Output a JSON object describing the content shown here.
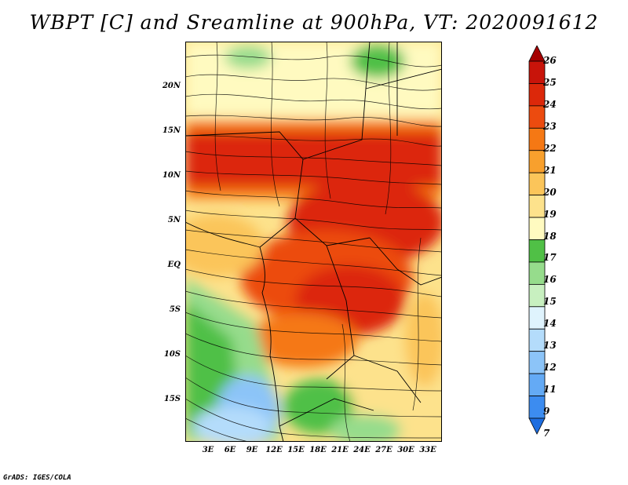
{
  "title": "WBPT [C] and Sreamline at 900hPa, VT: 2020091612",
  "footer": "GrADS: IGES/COLA",
  "map": {
    "lat_labels": [
      "20N",
      "15N",
      "10N",
      "5N",
      "EQ",
      "5S",
      "10S",
      "15S"
    ],
    "lon_labels": [
      "3E",
      "6E",
      "9E",
      "12E",
      "15E",
      "18E",
      "21E",
      "24E",
      "27E",
      "30E",
      "33E"
    ],
    "lat_range": [
      -20,
      24
    ],
    "lon_range": [
      0,
      35
    ],
    "lat_values": [
      20,
      15,
      10,
      5,
      0,
      -5,
      -10,
      -15
    ],
    "lon_values": [
      3,
      6,
      9,
      12,
      15,
      18,
      21,
      24,
      27,
      30,
      33
    ]
  },
  "colorbar": {
    "labels": [
      "7",
      "9",
      "11",
      "12",
      "13",
      "14",
      "15",
      "16",
      "17",
      "18",
      "19",
      "20",
      "21",
      "22",
      "23",
      "24",
      "25",
      "26"
    ],
    "colors": [
      "#1e6ee0",
      "#3c8cf0",
      "#64aaf5",
      "#8cc4f8",
      "#b4dcfb",
      "#dff3fd",
      "#c8f0c0",
      "#96dc8c",
      "#50c046",
      "#fffac0",
      "#fde28c",
      "#fbc55a",
      "#f8a02d",
      "#f57814",
      "#ec4b0f",
      "#dc280a",
      "#c8140a",
      "#a50000"
    ]
  }
}
